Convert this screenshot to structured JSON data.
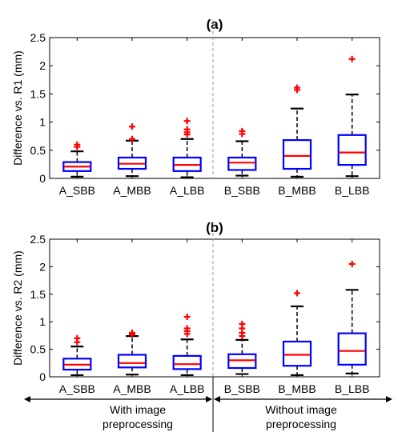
{
  "chart_data": [
    {
      "type": "box",
      "title": "(a)",
      "ylabel": "Difference vs. R1 (mm)",
      "ylim": [
        0,
        2.5
      ],
      "yticks": [
        "0",
        "0.5",
        "1",
        "1.5",
        "2",
        "2.5"
      ],
      "categories": [
        "A_SBB",
        "A_MBB",
        "A_LBB",
        "B_SBB",
        "B_MBB",
        "B_LBB"
      ],
      "boxes": [
        {
          "whisker_low": 0.03,
          "q1": 0.13,
          "median": 0.21,
          "q3": 0.29,
          "whisker_high": 0.48,
          "outliers": [
            0.56,
            0.6
          ]
        },
        {
          "whisker_low": 0.04,
          "q1": 0.17,
          "median": 0.26,
          "q3": 0.37,
          "whisker_high": 0.67,
          "outliers": [
            0.7,
            0.92
          ]
        },
        {
          "whisker_low": 0.02,
          "q1": 0.13,
          "median": 0.24,
          "q3": 0.37,
          "whisker_high": 0.7,
          "outliers": [
            0.78,
            0.82,
            0.87,
            1.02
          ]
        },
        {
          "whisker_low": 0.05,
          "q1": 0.15,
          "median": 0.28,
          "q3": 0.37,
          "whisker_high": 0.66,
          "outliers": [
            0.79,
            0.84
          ]
        },
        {
          "whisker_low": 0.03,
          "q1": 0.17,
          "median": 0.4,
          "q3": 0.68,
          "whisker_high": 1.24,
          "outliers": [
            1.57,
            1.61
          ]
        },
        {
          "whisker_low": 0.04,
          "q1": 0.24,
          "median": 0.46,
          "q3": 0.77,
          "whisker_high": 1.49,
          "outliers": [
            2.12
          ]
        }
      ]
    },
    {
      "type": "box",
      "title": "(b)",
      "ylabel": "Difference vs. R2 (mm)",
      "ylim": [
        0,
        2.5
      ],
      "yticks": [
        "0",
        "0.5",
        "1",
        "1.5",
        "2",
        "2.5"
      ],
      "categories": [
        "A_SBB",
        "A_MBB",
        "A_LBB",
        "B_SBB",
        "B_MBB",
        "B_LBB"
      ],
      "boxes": [
        {
          "whisker_low": 0.03,
          "q1": 0.13,
          "median": 0.22,
          "q3": 0.33,
          "whisker_high": 0.55,
          "outliers": [
            0.63,
            0.7
          ]
        },
        {
          "whisker_low": 0.04,
          "q1": 0.17,
          "median": 0.25,
          "q3": 0.4,
          "whisker_high": 0.74,
          "outliers": [
            0.77,
            0.8
          ]
        },
        {
          "whisker_low": 0.03,
          "q1": 0.14,
          "median": 0.23,
          "q3": 0.38,
          "whisker_high": 0.68,
          "outliers": [
            0.78,
            0.83,
            0.88,
            1.09
          ]
        },
        {
          "whisker_low": 0.05,
          "q1": 0.16,
          "median": 0.3,
          "q3": 0.41,
          "whisker_high": 0.67,
          "outliers": [
            0.74,
            0.8,
            0.88,
            0.96
          ]
        },
        {
          "whisker_low": 0.03,
          "q1": 0.2,
          "median": 0.4,
          "q3": 0.64,
          "whisker_high": 1.28,
          "outliers": [
            1.52
          ]
        },
        {
          "whisker_low": 0.06,
          "q1": 0.22,
          "median": 0.47,
          "q3": 0.79,
          "whisker_high": 1.58,
          "outliers": [
            2.05
          ]
        }
      ]
    }
  ],
  "group_labels": {
    "left": [
      "With image",
      "preprocessing"
    ],
    "right": [
      "Without image",
      "preprocessing"
    ]
  },
  "colors": {
    "box": "#0000ff",
    "median": "#ff0000",
    "outlier": "#ff0000",
    "whisker": "#000000",
    "divider": "#999999"
  }
}
